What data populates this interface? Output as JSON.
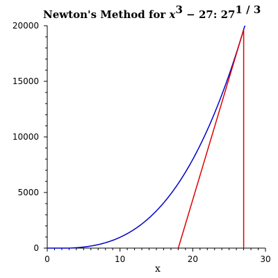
{
  "chart_data": {
    "type": "line",
    "title": {
      "prefix": "Newton's Method for ",
      "math_var": "x",
      "math_exp": "3",
      "math_rest": " − 27:  27",
      "root_exp": "1 / 3"
    },
    "xlabel": "x",
    "ylabel": "",
    "xlim": [
      0,
      30
    ],
    "ylim": [
      0,
      20000
    ],
    "x_ticks": [
      0,
      10,
      20,
      30
    ],
    "y_ticks": [
      0,
      5000,
      10000,
      15000,
      20000
    ],
    "grid": false,
    "series": [
      {
        "function": "x^3 - 27",
        "x_range": [
          0,
          27.2
        ],
        "color": "#0000cc"
      },
      {
        "points": [
          [
            27,
            0
          ],
          [
            27,
            19656
          ]
        ],
        "color": "#dd0000"
      },
      {
        "points": [
          [
            18.0123,
            0
          ],
          [
            27,
            19656
          ]
        ],
        "color": "#dd0000"
      }
    ]
  }
}
